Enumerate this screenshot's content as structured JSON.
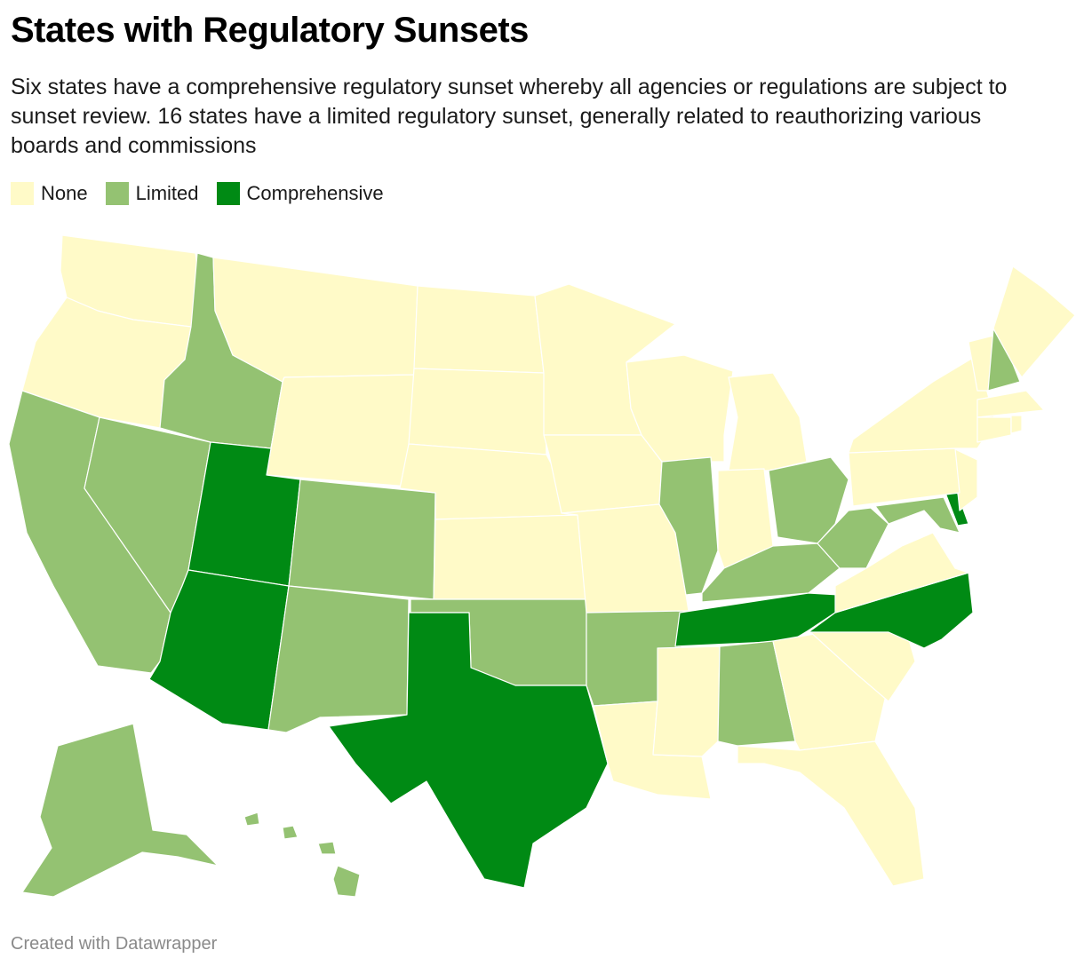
{
  "title": "States with Regulatory Sunsets",
  "subtitle": "Six states have a comprehensive regulatory sunset whereby all agencies or regulations are subject to sunset review. 16 states have a limited regulatory sunset, generally related to reauthorizing various boards and commissions",
  "legend": [
    {
      "key": "none",
      "label": "None",
      "color": "#fffac8"
    },
    {
      "key": "limited",
      "label": "Limited",
      "color": "#94c272"
    },
    {
      "key": "comprehensive",
      "label": "Comprehensive",
      "color": "#008a14"
    }
  ],
  "footer": "Created with Datawrapper",
  "map_data": {
    "type": "choropleth",
    "category_colors": {
      "none": "#fffac8",
      "limited": "#94c272",
      "comprehensive": "#008a14"
    },
    "states": [
      {
        "code": "WA",
        "category": "none"
      },
      {
        "code": "OR",
        "category": "none"
      },
      {
        "code": "CA",
        "category": "limited"
      },
      {
        "code": "NV",
        "category": "limited"
      },
      {
        "code": "ID",
        "category": "limited"
      },
      {
        "code": "MT",
        "category": "none"
      },
      {
        "code": "WY",
        "category": "none"
      },
      {
        "code": "UT",
        "category": "comprehensive"
      },
      {
        "code": "AZ",
        "category": "comprehensive"
      },
      {
        "code": "CO",
        "category": "limited"
      },
      {
        "code": "NM",
        "category": "limited"
      },
      {
        "code": "ND",
        "category": "none"
      },
      {
        "code": "SD",
        "category": "none"
      },
      {
        "code": "NE",
        "category": "none"
      },
      {
        "code": "KS",
        "category": "none"
      },
      {
        "code": "OK",
        "category": "limited"
      },
      {
        "code": "TX",
        "category": "comprehensive"
      },
      {
        "code": "MN",
        "category": "none"
      },
      {
        "code": "IA",
        "category": "none"
      },
      {
        "code": "MO",
        "category": "none"
      },
      {
        "code": "AR",
        "category": "limited"
      },
      {
        "code": "LA",
        "category": "none"
      },
      {
        "code": "WI",
        "category": "none"
      },
      {
        "code": "IL",
        "category": "limited"
      },
      {
        "code": "MI",
        "category": "none"
      },
      {
        "code": "IN",
        "category": "none"
      },
      {
        "code": "OH",
        "category": "limited"
      },
      {
        "code": "KY",
        "category": "limited"
      },
      {
        "code": "TN",
        "category": "comprehensive"
      },
      {
        "code": "MS",
        "category": "none"
      },
      {
        "code": "AL",
        "category": "limited"
      },
      {
        "code": "GA",
        "category": "none"
      },
      {
        "code": "FL",
        "category": "none"
      },
      {
        "code": "SC",
        "category": "none"
      },
      {
        "code": "NC",
        "category": "comprehensive"
      },
      {
        "code": "VA",
        "category": "none"
      },
      {
        "code": "WV",
        "category": "limited"
      },
      {
        "code": "MD",
        "category": "limited"
      },
      {
        "code": "DE",
        "category": "comprehensive"
      },
      {
        "code": "NJ",
        "category": "none"
      },
      {
        "code": "PA",
        "category": "none"
      },
      {
        "code": "NY",
        "category": "none"
      },
      {
        "code": "VT",
        "category": "none"
      },
      {
        "code": "NH",
        "category": "limited"
      },
      {
        "code": "ME",
        "category": "none"
      },
      {
        "code": "MA",
        "category": "none"
      },
      {
        "code": "CT",
        "category": "none"
      },
      {
        "code": "RI",
        "category": "none"
      },
      {
        "code": "AK",
        "category": "limited"
      },
      {
        "code": "HI",
        "category": "limited"
      }
    ]
  }
}
